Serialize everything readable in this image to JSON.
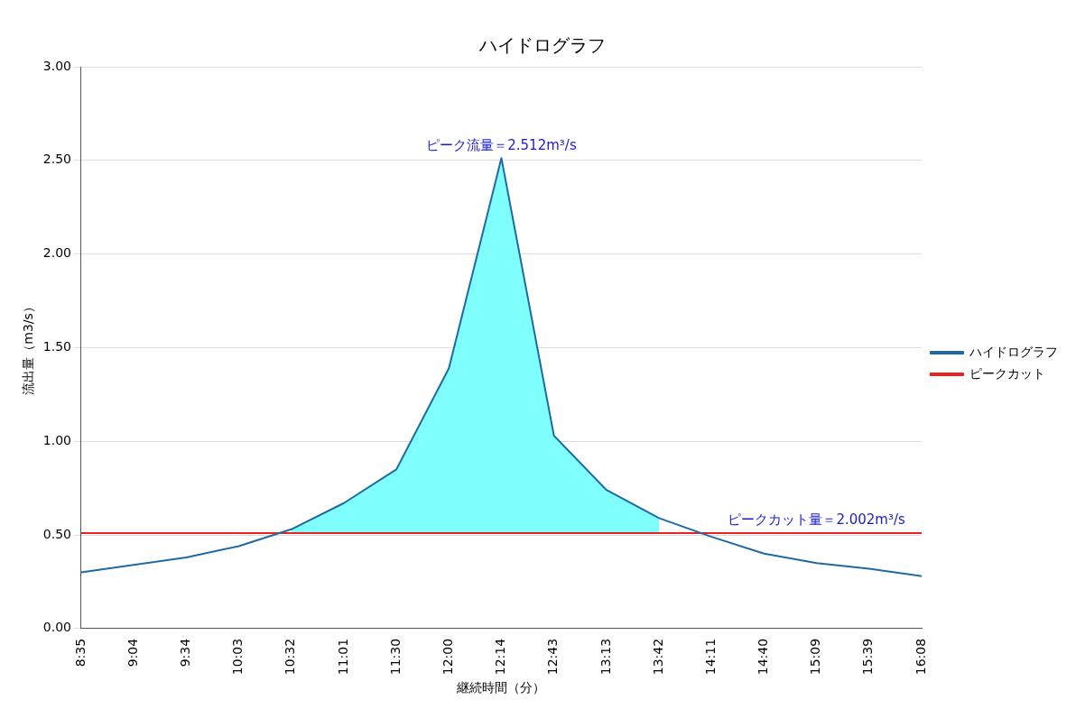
{
  "chart_data": {
    "type": "line",
    "title": "ハイドログラフ",
    "xlabel": "継続時間（分）",
    "ylabel": "流出量（m3/s）",
    "categories": [
      "8:35",
      "9:04",
      "9:34",
      "10:03",
      "10:32",
      "11:01",
      "11:30",
      "12:00",
      "12:14",
      "12:43",
      "13:13",
      "13:42",
      "14:11",
      "14:40",
      "15:09",
      "15:39",
      "16:08"
    ],
    "series": [
      {
        "name": "ハイドログラフ",
        "type": "line",
        "color": "#1f6aa5",
        "lower": [
          null,
          null,
          null,
          null,
          0.51,
          0.51,
          0.51,
          0.51,
          0.51,
          0.51,
          0.51,
          0.51,
          null,
          null,
          null,
          null,
          null
        ],
        "upper": [
          null,
          null,
          null,
          null,
          0.53,
          0.67,
          0.85,
          1.39,
          2.512,
          1.03,
          0.74,
          0.59,
          null,
          null,
          null,
          null,
          null
        ],
        "values": [
          0.3,
          0.34,
          0.38,
          0.44,
          0.53,
          0.67,
          0.85,
          1.39,
          2.512,
          1.03,
          0.74,
          0.59,
          0.49,
          0.4,
          0.35,
          0.32,
          0.28
        ]
      },
      {
        "name": "ピークカット",
        "type": "line",
        "color": "#e8231f",
        "values": [
          0.51,
          0.51,
          0.51,
          0.51,
          0.51,
          0.51,
          0.51,
          0.51,
          0.51,
          0.51,
          0.51,
          0.51,
          0.51,
          0.51,
          0.51,
          0.51,
          0.51
        ]
      }
    ],
    "ylim": [
      0,
      3
    ],
    "yticks": [
      {
        "value": 0,
        "label": "0.00"
      },
      {
        "value": 0.5,
        "label": "0.50"
      },
      {
        "value": 1,
        "label": "1.00"
      },
      {
        "value": 1.5,
        "label": "1.50"
      },
      {
        "value": 2,
        "label": "2.00"
      },
      {
        "value": 2.5,
        "label": "2.50"
      },
      {
        "value": 3,
        "label": "3.00"
      }
    ],
    "annotations": [
      {
        "text": "ピーク流量＝2.512m³/s",
        "x": "12:14",
        "y": 2.512
      },
      {
        "text": "ピークカット量＝2.002m³/s",
        "x": "15:09",
        "y": 0.51
      }
    ],
    "grid": "y",
    "legend": "right",
    "marker": "none",
    "line_style": "solid"
  }
}
